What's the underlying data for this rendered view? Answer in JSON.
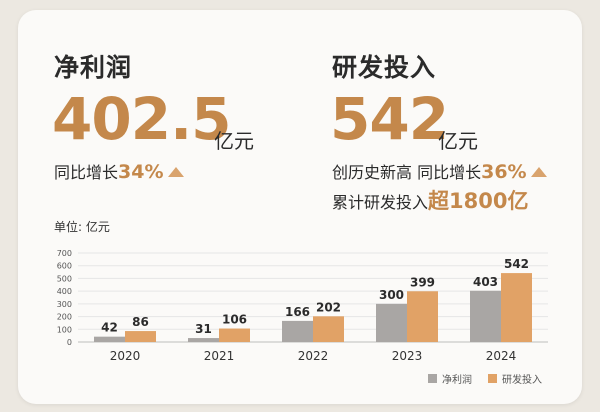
{
  "net_profit": {
    "title": "净利润",
    "value": "402.5",
    "unit": "亿元",
    "growth_prefix": "同比增长",
    "growth_value": "34%"
  },
  "rnd": {
    "title": "研发投入",
    "value": "542",
    "unit": "亿元",
    "line1_prefix": "创历史新高 同比增长",
    "line1_value": "36%",
    "line2_prefix": "累计研发投入",
    "line2_value": "超1800亿"
  },
  "colors": {
    "accent": "#c4884b",
    "profit_bar": "#a9a6a4",
    "rnd_bar": "#e1a266"
  },
  "chart_data": {
    "type": "bar",
    "unit_label": "单位: 亿元",
    "categories": [
      "2020",
      "2021",
      "2022",
      "2023",
      "2024"
    ],
    "series": [
      {
        "name": "净利润",
        "values": [
          42,
          31,
          166,
          300,
          403
        ]
      },
      {
        "name": "研发投入",
        "values": [
          86,
          106,
          202,
          399,
          542
        ]
      }
    ],
    "ylim": [
      0,
      700
    ],
    "yticks": [
      0,
      100,
      200,
      300,
      400,
      500,
      600,
      700
    ],
    "grid": true,
    "legend_position": "bottom-right"
  }
}
